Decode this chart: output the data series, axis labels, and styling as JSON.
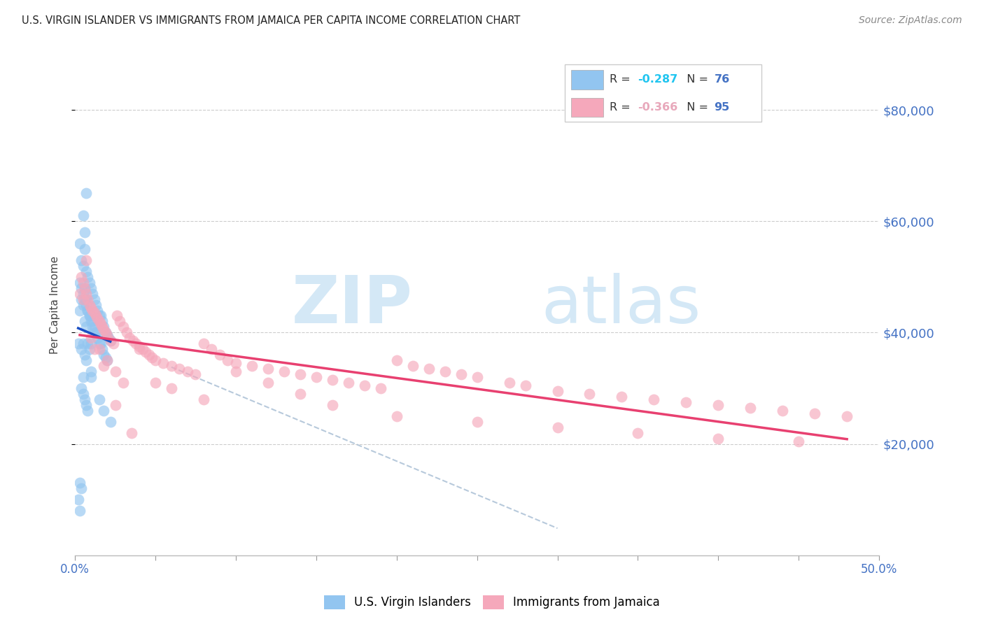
{
  "title": "U.S. VIRGIN ISLANDER VS IMMIGRANTS FROM JAMAICA PER CAPITA INCOME CORRELATION CHART",
  "source": "Source: ZipAtlas.com",
  "ylabel": "Per Capita Income",
  "legend_label1": "U.S. Virgin Islanders",
  "legend_label2": "Immigrants from Jamaica",
  "ytick_labels": [
    "$20,000",
    "$40,000",
    "$60,000",
    "$80,000"
  ],
  "ytick_values": [
    20000,
    40000,
    60000,
    80000
  ],
  "color_blue": "#92c5f0",
  "color_pink": "#f5a8bb",
  "color_line_blue": "#1a4fc4",
  "color_line_pink": "#e84070",
  "color_axis_labels": "#4472c4",
  "background": "#ffffff",
  "xlim": [
    0.0,
    0.5
  ],
  "ylim": [
    0,
    90000
  ],
  "blue_scatter_x": [
    0.002,
    0.003,
    0.003,
    0.004,
    0.004,
    0.004,
    0.005,
    0.005,
    0.005,
    0.005,
    0.006,
    0.006,
    0.006,
    0.006,
    0.007,
    0.007,
    0.007,
    0.007,
    0.008,
    0.008,
    0.008,
    0.009,
    0.009,
    0.009,
    0.01,
    0.01,
    0.01,
    0.01,
    0.011,
    0.011,
    0.012,
    0.012,
    0.013,
    0.013,
    0.014,
    0.014,
    0.015,
    0.015,
    0.016,
    0.016,
    0.017,
    0.017,
    0.018,
    0.018,
    0.019,
    0.019,
    0.02,
    0.02,
    0.021,
    0.022,
    0.003,
    0.004,
    0.005,
    0.006,
    0.007,
    0.008,
    0.009,
    0.01,
    0.011,
    0.012,
    0.004,
    0.005,
    0.006,
    0.007,
    0.008,
    0.003,
    0.004,
    0.005,
    0.006,
    0.007,
    0.002,
    0.003,
    0.01,
    0.015,
    0.018,
    0.022
  ],
  "blue_scatter_y": [
    38000,
    56000,
    44000,
    53000,
    46000,
    37000,
    52000,
    45000,
    38000,
    32000,
    55000,
    48000,
    42000,
    36000,
    51000,
    46000,
    41000,
    35000,
    50000,
    44000,
    38000,
    49000,
    43000,
    37000,
    48000,
    43000,
    38000,
    33000,
    47000,
    42000,
    46000,
    41000,
    45000,
    40000,
    44000,
    39000,
    43000,
    38000,
    43000,
    38000,
    42000,
    37000,
    41000,
    36000,
    40000,
    35500,
    39500,
    35000,
    39000,
    38500,
    49000,
    48000,
    47000,
    46000,
    45000,
    44000,
    43000,
    42000,
    41000,
    40000,
    30000,
    29000,
    28000,
    27000,
    26000,
    13000,
    12000,
    61000,
    58000,
    65000,
    10000,
    8000,
    32000,
    28000,
    26000,
    24000
  ],
  "pink_scatter_x": [
    0.003,
    0.004,
    0.005,
    0.006,
    0.007,
    0.008,
    0.009,
    0.01,
    0.011,
    0.012,
    0.013,
    0.014,
    0.015,
    0.016,
    0.017,
    0.018,
    0.019,
    0.02,
    0.022,
    0.024,
    0.026,
    0.028,
    0.03,
    0.032,
    0.034,
    0.036,
    0.038,
    0.04,
    0.042,
    0.044,
    0.046,
    0.048,
    0.05,
    0.055,
    0.06,
    0.065,
    0.07,
    0.075,
    0.08,
    0.085,
    0.09,
    0.095,
    0.1,
    0.11,
    0.12,
    0.13,
    0.14,
    0.15,
    0.16,
    0.17,
    0.18,
    0.19,
    0.2,
    0.21,
    0.22,
    0.23,
    0.24,
    0.25,
    0.27,
    0.28,
    0.3,
    0.32,
    0.34,
    0.36,
    0.38,
    0.4,
    0.42,
    0.44,
    0.46,
    0.48,
    0.005,
    0.01,
    0.015,
    0.02,
    0.025,
    0.03,
    0.04,
    0.05,
    0.06,
    0.08,
    0.1,
    0.12,
    0.14,
    0.16,
    0.2,
    0.25,
    0.3,
    0.35,
    0.4,
    0.45,
    0.007,
    0.012,
    0.018,
    0.025,
    0.035
  ],
  "pink_scatter_y": [
    47000,
    50000,
    49000,
    48000,
    47000,
    46000,
    45000,
    44500,
    44000,
    43500,
    43000,
    42500,
    42000,
    41500,
    41000,
    40500,
    40000,
    39500,
    38500,
    38000,
    43000,
    42000,
    41000,
    40000,
    39000,
    38500,
    38000,
    37500,
    37000,
    36500,
    36000,
    35500,
    35000,
    34500,
    34000,
    33500,
    33000,
    32500,
    38000,
    37000,
    36000,
    35000,
    34500,
    34000,
    33500,
    33000,
    32500,
    32000,
    31500,
    31000,
    30500,
    30000,
    35000,
    34000,
    33500,
    33000,
    32500,
    32000,
    31000,
    30500,
    29500,
    29000,
    28500,
    28000,
    27500,
    27000,
    26500,
    26000,
    25500,
    25000,
    46000,
    39000,
    37000,
    35000,
    33000,
    31000,
    37000,
    31000,
    30000,
    28000,
    33000,
    31000,
    29000,
    27000,
    25000,
    24000,
    23000,
    22000,
    21000,
    20500,
    53000,
    37000,
    34000,
    27000,
    22000
  ]
}
